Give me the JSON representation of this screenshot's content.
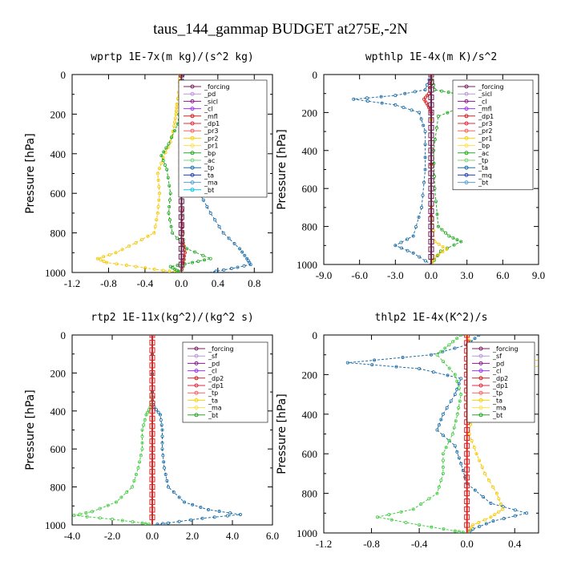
{
  "figure_title": "taus_144_gammap  BUDGET at275E,-2N",
  "chart_data": [
    {
      "type": "line",
      "title": "wprtp  1E-7x(m kg)/(s^2 kg)",
      "ylabel": "Pressure [hPa]",
      "xlim": [
        -1.2,
        1.0
      ],
      "xticks": [
        "-1.2",
        "-0.8",
        "-0.4",
        "0.0",
        "0.4",
        "0.8"
      ],
      "xtick_values": [
        -1.2,
        -0.8,
        -0.4,
        0.0,
        0.4,
        0.8
      ],
      "ylim": [
        1000,
        0
      ],
      "yticks": [
        "0",
        "200",
        "400",
        "600",
        "800",
        "1000"
      ],
      "legend": [
        "_forcing",
        "_pd",
        "_sicl",
        "_cl",
        "_mfl",
        "_dp1",
        "_pr3",
        "_pr2",
        "_pr1",
        "_bp",
        "_ac",
        "_tp",
        "_ta",
        "_ma",
        "_bt"
      ],
      "series": [
        {
          "name": "_pr1",
          "color": "#f5c800",
          "points": [
            [
              -0.02,
              0
            ],
            [
              -0.02,
              60
            ],
            [
              -0.05,
              150
            ],
            [
              -0.06,
              200
            ],
            [
              -0.08,
              260
            ],
            [
              -0.12,
              340
            ],
            [
              -0.2,
              420
            ],
            [
              -0.26,
              500
            ],
            [
              -0.24,
              600
            ],
            [
              -0.26,
              700
            ],
            [
              -0.3,
              800
            ],
            [
              -0.5,
              850
            ],
            [
              -0.72,
              900
            ],
            [
              -0.92,
              930
            ],
            [
              -0.82,
              950
            ],
            [
              -0.5,
              970
            ],
            [
              -0.2,
              990
            ],
            [
              0,
              1000
            ]
          ]
        },
        {
          "name": "_bp",
          "color": "#22aa22",
          "points": [
            [
              0,
              0
            ],
            [
              0,
              100
            ],
            [
              -0.04,
              250
            ],
            [
              -0.14,
              350
            ],
            [
              -0.22,
              410
            ],
            [
              -0.16,
              480
            ],
            [
              -0.12,
              600
            ],
            [
              -0.14,
              700
            ],
            [
              -0.1,
              800
            ],
            [
              0.06,
              880
            ],
            [
              0.32,
              930
            ],
            [
              0.12,
              950
            ],
            [
              -0.12,
              970
            ],
            [
              -0.05,
              990
            ],
            [
              0,
              1000
            ]
          ]
        },
        {
          "name": "_tp",
          "color": "#1f6fa8",
          "points": [
            [
              0.02,
              0
            ],
            [
              0.02,
              100
            ],
            [
              0.04,
              300
            ],
            [
              0.08,
              400
            ],
            [
              0.14,
              500
            ],
            [
              0.2,
              600
            ],
            [
              0.32,
              700
            ],
            [
              0.46,
              800
            ],
            [
              0.64,
              880
            ],
            [
              0.72,
              930
            ],
            [
              0.76,
              960
            ],
            [
              0.55,
              980
            ],
            [
              0.3,
              1000
            ]
          ]
        },
        {
          "name": "_ac",
          "color": "#7fd17f",
          "points": [
            [
              0,
              0
            ],
            [
              0,
              500
            ],
            [
              0.02,
              800
            ],
            [
              0.04,
              900
            ],
            [
              0.02,
              1000
            ]
          ]
        },
        {
          "name": "_dp1",
          "color": "#e02020",
          "points": [
            [
              0,
              0
            ],
            [
              0,
              600
            ],
            [
              0.02,
              850
            ],
            [
              0.04,
              900
            ],
            [
              0.02,
              950
            ],
            [
              0,
              1000
            ]
          ]
        },
        {
          "name": "_bt",
          "color": "#6b1e4e",
          "points": [
            [
              0,
              0
            ],
            [
              0,
              1000
            ]
          ]
        }
      ]
    },
    {
      "type": "line",
      "title": "wpthlp  1E-4x(m K)/s^2",
      "ylabel": "Pressure [hPa]",
      "xlim": [
        -9.0,
        9.0
      ],
      "xticks": [
        "-9.0",
        "-6.0",
        "-3.0",
        "0.0",
        "3.0",
        "6.0",
        "9.0"
      ],
      "xtick_values": [
        -9.0,
        -6.0,
        -3.0,
        0.0,
        3.0,
        6.0,
        9.0
      ],
      "ylim": [
        1000,
        0
      ],
      "yticks": [
        "0",
        "200",
        "400",
        "600",
        "800",
        "1000"
      ],
      "legend": [
        "_forcing",
        "_sicl",
        "_cl",
        "_mfl",
        "_dp1",
        "_pr3",
        "_pr2",
        "_pr1",
        "_bp",
        "_ac",
        "_tp",
        "_ta",
        "_mq",
        "_bt"
      ],
      "series": [
        {
          "name": "_tp",
          "color": "#1f6fa8",
          "points": [
            [
              0,
              0
            ],
            [
              -0.5,
              80
            ],
            [
              -3,
              110
            ],
            [
              -6.5,
              130
            ],
            [
              -3,
              160
            ],
            [
              -1,
              200
            ],
            [
              -0.5,
              300
            ],
            [
              -0.5,
              500
            ],
            [
              -0.8,
              700
            ],
            [
              -1.5,
              850
            ],
            [
              -3,
              900
            ],
            [
              -1.5,
              940
            ],
            [
              0,
              1000
            ]
          ]
        },
        {
          "name": "_bp",
          "color": "#22aa22",
          "points": [
            [
              0,
              0
            ],
            [
              0.3,
              80
            ],
            [
              2,
              100
            ],
            [
              6.5,
              130
            ],
            [
              3,
              160
            ],
            [
              0.6,
              220
            ],
            [
              0.2,
              400
            ],
            [
              0.3,
              600
            ],
            [
              0.6,
              800
            ],
            [
              1.5,
              850
            ],
            [
              2.5,
              880
            ],
            [
              0.8,
              930
            ],
            [
              0,
              1000
            ]
          ]
        },
        {
          "name": "_pr1",
          "color": "#f5c800",
          "points": [
            [
              0,
              0
            ],
            [
              0,
              700
            ],
            [
              0.3,
              880
            ],
            [
              1.3,
              920
            ],
            [
              0.3,
              960
            ],
            [
              0,
              1000
            ]
          ]
        },
        {
          "name": "_dp1",
          "color": "#e02020",
          "points": [
            [
              0,
              0
            ],
            [
              -0.2,
              100
            ],
            [
              -0.6,
              130
            ],
            [
              -0.3,
              160
            ],
            [
              0,
              200
            ],
            [
              0,
              1000
            ]
          ]
        },
        {
          "name": "_bt",
          "color": "#6b1e4e",
          "points": [
            [
              0,
              0
            ],
            [
              0,
              1000
            ]
          ]
        }
      ]
    },
    {
      "type": "line",
      "title": "rtp2  1E-11x(kg^2)/(kg^2 s)",
      "ylabel": "Pressure [hPa]",
      "xlim": [
        -4.0,
        6.0
      ],
      "xticks": [
        "-4.0",
        "-2.0",
        "0.0",
        "2.0",
        "4.0",
        "6.0"
      ],
      "xtick_values": [
        -4.0,
        -2.0,
        0.0,
        2.0,
        4.0,
        6.0
      ],
      "ylim": [
        1000,
        0
      ],
      "yticks": [
        "0",
        "200",
        "400",
        "600",
        "800",
        "1000"
      ],
      "legend": [
        "_forcing",
        "_sf",
        "_pd",
        "_cl",
        "_dp2",
        "_dp1",
        "_tp",
        "_ta",
        "_ma",
        "_bt"
      ],
      "series": [
        {
          "name": "_dp1",
          "color": "#44cc44",
          "points": [
            [
              0,
              0
            ],
            [
              0,
              300
            ],
            [
              -0.1,
              380
            ],
            [
              -0.3,
              420
            ],
            [
              -0.5,
              500
            ],
            [
              -0.5,
              600
            ],
            [
              -0.7,
              700
            ],
            [
              -1.0,
              800
            ],
            [
              -1.8,
              880
            ],
            [
              -3.0,
              930
            ],
            [
              -3.9,
              950
            ],
            [
              -2.0,
              970
            ],
            [
              -0.5,
              990
            ],
            [
              0,
              1000
            ]
          ]
        },
        {
          "name": "_tp",
          "color": "#1f6fa8",
          "points": [
            [
              0,
              0
            ],
            [
              0,
              300
            ],
            [
              0.1,
              380
            ],
            [
              0.4,
              420
            ],
            [
              0.5,
              500
            ],
            [
              0.5,
              600
            ],
            [
              0.6,
              700
            ],
            [
              0.8,
              800
            ],
            [
              1.6,
              880
            ],
            [
              2.8,
              920
            ],
            [
              4.4,
              945
            ],
            [
              2.5,
              965
            ],
            [
              0.8,
              990
            ],
            [
              0,
              1000
            ]
          ]
        },
        {
          "name": "_bt",
          "color": "#dd2222",
          "points": [
            [
              0,
              0
            ],
            [
              0,
              1000
            ]
          ]
        }
      ]
    },
    {
      "type": "line",
      "title": "thlp2  1E-4x(K^2)/s",
      "ylabel": "Pressure [hPa]",
      "xlim": [
        -1.2,
        0.6
      ],
      "xticks": [
        "-1.2",
        "-0.8",
        "-0.4",
        "0.0",
        "0.4"
      ],
      "xtick_values": [
        -1.2,
        -0.8,
        -0.4,
        0.0,
        0.4
      ],
      "ylim": [
        1000,
        0
      ],
      "yticks": [
        "0",
        "200",
        "400",
        "600",
        "800",
        "1000"
      ],
      "legend": [
        "_forcing",
        "_sf",
        "_pd",
        "_cl",
        "_dp2",
        "_dp1",
        "_tp",
        "_ta",
        "_ma",
        "_bt"
      ],
      "series": [
        {
          "name": "_tp",
          "color": "#1f6fa8",
          "points": [
            [
              0.1,
              0
            ],
            [
              0,
              50
            ],
            [
              -0.3,
              100
            ],
            [
              -1.0,
              140
            ],
            [
              -0.4,
              170
            ],
            [
              -0.05,
              220
            ],
            [
              -0.1,
              300
            ],
            [
              -0.2,
              400
            ],
            [
              -0.25,
              480
            ],
            [
              -0.1,
              560
            ],
            [
              -0.05,
              650
            ],
            [
              0,
              750
            ],
            [
              0.2,
              850
            ],
            [
              0.5,
              900
            ],
            [
              0.22,
              940
            ],
            [
              0.05,
              980
            ],
            [
              0,
              1000
            ]
          ]
        },
        {
          "name": "_pd",
          "color": "#f5c800",
          "points": [
            [
              0,
              0
            ],
            [
              0.05,
              80
            ],
            [
              0.35,
              110
            ],
            [
              0.75,
              140
            ],
            [
              0.4,
              180
            ],
            [
              0.1,
              250
            ],
            [
              0.05,
              350
            ],
            [
              0.02,
              500
            ],
            [
              0.08,
              600
            ],
            [
              0.15,
              700
            ],
            [
              0.25,
              800
            ],
            [
              0.3,
              880
            ],
            [
              0.2,
              920
            ],
            [
              0.05,
              960
            ],
            [
              0,
              1000
            ]
          ]
        },
        {
          "name": "_dp1",
          "color": "#44cc44",
          "points": [
            [
              -0.05,
              0
            ],
            [
              -0.15,
              50
            ],
            [
              -0.25,
              100
            ],
            [
              -0.1,
              200
            ],
            [
              -0.05,
              300
            ],
            [
              -0.08,
              400
            ],
            [
              -0.12,
              500
            ],
            [
              -0.2,
              600
            ],
            [
              -0.2,
              700
            ],
            [
              -0.25,
              800
            ],
            [
              -0.45,
              880
            ],
            [
              -0.75,
              920
            ],
            [
              -0.4,
              960
            ],
            [
              -0.1,
              990
            ],
            [
              0,
              1000
            ]
          ]
        },
        {
          "name": "_bt",
          "color": "#dd2222",
          "points": [
            [
              0,
              0
            ],
            [
              0,
              1000
            ]
          ]
        }
      ]
    }
  ]
}
